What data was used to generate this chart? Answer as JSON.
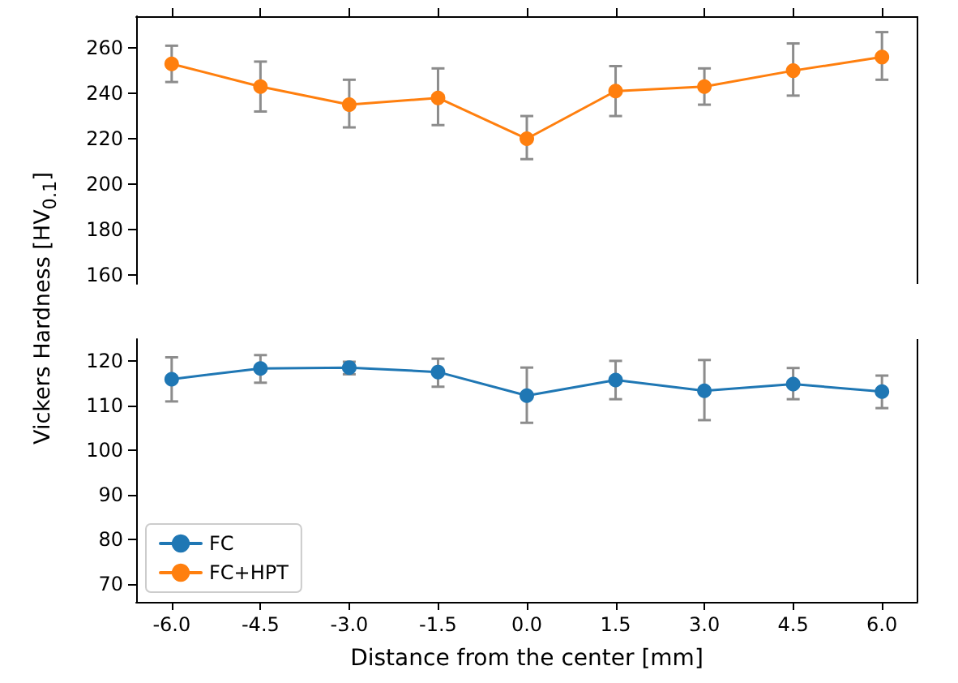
{
  "chart_data": [
    {
      "type": "line",
      "ylabel": "Vickers Hardness [HV$_{0.1}$]",
      "x": [
        -6,
        -4.5,
        -3,
        -1.5,
        0,
        1.5,
        3,
        4.5,
        6
      ],
      "series": [
        {
          "color": "#ff7f0e",
          "values": [
            253,
            243,
            235,
            238,
            220,
            241,
            243,
            250,
            256
          ],
          "errors": [
            [
              245,
              261
            ],
            [
              232,
              254
            ],
            [
              225,
              246
            ],
            [
              226,
              251
            ],
            [
              211,
              230
            ],
            [
              230,
              252
            ],
            [
              235,
              251
            ],
            [
              239,
              262
            ],
            [
              246,
              267
            ]
          ]
        }
      ],
      "xlim": [
        -6.6,
        6.6
      ],
      "xticks": [
        {
          "value": -6,
          "label": null
        },
        {
          "value": -4.5,
          "label": null
        },
        {
          "value": -3,
          "label": null
        },
        {
          "value": -1.5,
          "label": null
        },
        {
          "value": 0,
          "label": null
        },
        {
          "value": 1.5,
          "label": null
        },
        {
          "value": 3,
          "label": null
        },
        {
          "value": 4.5,
          "label": null
        },
        {
          "value": 6,
          "label": null
        }
      ],
      "ylim": [
        156,
        274
      ],
      "yticks": [
        160,
        180,
        200,
        220,
        240,
        260
      ],
      "tick_labels": "y",
      "marker": "circle",
      "grid": false,
      "legend": false
    },
    {
      "type": "line",
      "xlabel": "Distance from the center [mm]",
      "x": [
        -6,
        -4.5,
        -3,
        -1.5,
        0,
        1.5,
        3,
        4.5,
        6
      ],
      "series": [
        {
          "name": "FC",
          "color": "#1f77b4",
          "values": [
            116,
            118.4,
            118.6,
            117.6,
            112.3,
            115.8,
            113.4,
            114.9,
            113.2
          ],
          "errors": [
            [
              111,
              120.9
            ],
            [
              115.2,
              121.4
            ],
            [
              117.1,
              119.9
            ],
            [
              114.3,
              120.6
            ],
            [
              106.2,
              118.6
            ],
            [
              111.5,
              120.1
            ],
            [
              106.8,
              120.3
            ],
            [
              111.5,
              118.5
            ],
            [
              109.5,
              116.8
            ]
          ]
        },
        {
          "name": "FC+HPT",
          "color": "#ff7f0e",
          "values": [
            null,
            null,
            null,
            null,
            null,
            null,
            null,
            null,
            null
          ]
        }
      ],
      "xlim": [
        -6.6,
        6.6
      ],
      "xticks": [
        {
          "value": -6,
          "label": "-6.0"
        },
        {
          "value": -4.5,
          "label": "-4.5"
        },
        {
          "value": -3,
          "label": "-3.0"
        },
        {
          "value": -1.5,
          "label": "-1.5"
        },
        {
          "value": 0,
          "label": "0.0"
        },
        {
          "value": 1.5,
          "label": "1.5"
        },
        {
          "value": 3,
          "label": "3.0"
        },
        {
          "value": 4.5,
          "label": "4.5"
        },
        {
          "value": 6,
          "label": "6.0"
        }
      ],
      "ylim": [
        66,
        125
      ],
      "yticks": [
        70,
        80,
        90,
        100,
        110,
        120
      ],
      "marker": "circle",
      "grid": false,
      "legend": "bottom left"
    }
  ]
}
